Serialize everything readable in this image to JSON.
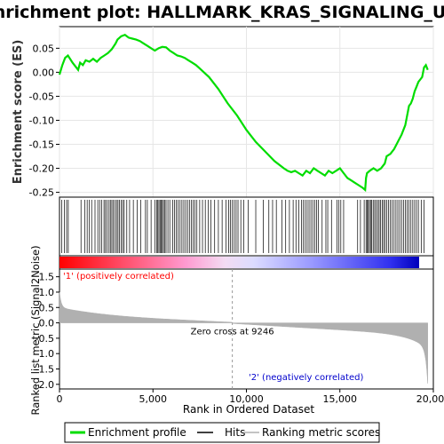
{
  "chart_data": {
    "type": "line",
    "title": "Enrichment plot: HALLMARK_KRAS_SIGNALING_UP",
    "ylabel_top": "Enrichment score (ES)",
    "ylabel_bottom": "Ranked list metric (Signal2Noise)",
    "xlabel": "Rank in Ordered Dataset",
    "x_ticks": [
      0,
      5000,
      10000,
      15000,
      20000
    ],
    "x_tick_labels": [
      "0",
      "5,000",
      "10,000",
      "15,000",
      "20,000"
    ],
    "es_y_ticks": [
      0.05,
      0.0,
      -0.05,
      -0.1,
      -0.15,
      -0.2,
      -0.25
    ],
    "es_y_tick_labels": [
      "0.05",
      "0.00",
      "-0.05",
      "-0.10",
      "-0.15",
      "-0.20",
      "-0.25"
    ],
    "es_ylim": [
      -0.26,
      0.095
    ],
    "metric_y_ticks": [
      1.5,
      1.0,
      0.5,
      0.0,
      -0.5,
      -1.0,
      -1.5,
      -2.0
    ],
    "metric_y_tick_labels": [
      "1.5",
      "1.0",
      "0.5",
      "0.0",
      "-0.5",
      "-1.0",
      "-1.5",
      "-2.0"
    ],
    "metric_ylim": [
      -2.15,
      1.75
    ],
    "xlim": [
      0,
      20000
    ],
    "n_genes": 19700,
    "zero_cross": 9246,
    "zero_cross_label": "Zero cross at 9246",
    "pos_label": "'1' (positively correlated)",
    "neg_label": "'2' (negatively correlated)",
    "colors": {
      "es_line": "#00dd00",
      "hit": "#000000",
      "metric": "#b0b0b0",
      "pos_text": "#ff0000",
      "neg_text": "#0000cc"
    },
    "series": [
      {
        "name": "Enrichment profile",
        "x": [
          0,
          150,
          300,
          450,
          700,
          1000,
          1100,
          1250,
          1400,
          1600,
          1800,
          2000,
          2200,
          2400,
          2600,
          2800,
          3000,
          3100,
          3300,
          3500,
          3700,
          3900,
          4100,
          4300,
          4500,
          4700,
          4900,
          5100,
          5300,
          5500,
          5700,
          5900,
          6100,
          6300,
          6500,
          6700,
          6900,
          7100,
          7300,
          7500,
          8000,
          8500,
          9000,
          9500,
          10000,
          10500,
          11000,
          11500,
          12000,
          12200,
          12400,
          12600,
          12800,
          13000,
          13200,
          13400,
          13600,
          13800,
          14000,
          14200,
          14400,
          14600,
          14800,
          15000,
          15200,
          15400,
          15600,
          15800,
          16000,
          16200,
          16350,
          16400,
          16450,
          16600,
          16800,
          17000,
          17200,
          17400,
          17500,
          17700,
          17900,
          18100,
          18300,
          18500,
          18600,
          18700,
          18800,
          18900,
          19000,
          19100,
          19200,
          19300,
          19400,
          19500,
          19600,
          19700
        ],
        "y": [
          -0.005,
          0.015,
          0.03,
          0.035,
          0.02,
          0.005,
          0.02,
          0.015,
          0.025,
          0.022,
          0.028,
          0.022,
          0.03,
          0.035,
          0.04,
          0.048,
          0.06,
          0.068,
          0.075,
          0.078,
          0.072,
          0.07,
          0.068,
          0.065,
          0.06,
          0.055,
          0.05,
          0.045,
          0.05,
          0.053,
          0.052,
          0.045,
          0.04,
          0.035,
          0.033,
          0.03,
          0.025,
          0.02,
          0.015,
          0.008,
          -0.01,
          -0.035,
          -0.065,
          -0.09,
          -0.12,
          -0.145,
          -0.165,
          -0.185,
          -0.2,
          -0.205,
          -0.208,
          -0.205,
          -0.21,
          -0.215,
          -0.205,
          -0.21,
          -0.2,
          -0.205,
          -0.21,
          -0.215,
          -0.205,
          -0.21,
          -0.205,
          -0.2,
          -0.21,
          -0.22,
          -0.225,
          -0.23,
          -0.235,
          -0.24,
          -0.245,
          -0.22,
          -0.21,
          -0.205,
          -0.2,
          -0.205,
          -0.2,
          -0.19,
          -0.175,
          -0.17,
          -0.16,
          -0.145,
          -0.13,
          -0.11,
          -0.09,
          -0.07,
          -0.065,
          -0.055,
          -0.04,
          -0.03,
          -0.02,
          -0.015,
          -0.01,
          0.01,
          0.015,
          0.005
        ]
      }
    ],
    "hits": [
      120,
      260,
      380,
      470,
      1150,
      1350,
      1480,
      1600,
      1720,
      1900,
      2050,
      2150,
      2250,
      2380,
      2460,
      2550,
      2650,
      2720,
      2800,
      2880,
      2960,
      3050,
      3130,
      3210,
      3300,
      3380,
      3460,
      3600,
      3750,
      3950,
      4150,
      4350,
      4600,
      4700,
      4900,
      5100,
      5200,
      5260,
      5320,
      5380,
      5440,
      5500,
      5560,
      5620,
      5700,
      5800,
      5900,
      6050,
      6150,
      6250,
      6350,
      6450,
      6550,
      6650,
      6750,
      6850,
      6950,
      7050,
      7150,
      7250,
      7350,
      7500,
      7650,
      7800,
      7950,
      8100,
      8300,
      8500,
      8700,
      8900,
      9050,
      9150,
      9250,
      9350,
      9450,
      9550,
      9700,
      9850,
      10100,
      10500,
      10900,
      11200,
      11400,
      11600,
      11900,
      12100,
      12300,
      12500,
      12650,
      12800,
      12950,
      13050,
      13150,
      13250,
      13350,
      13450,
      13550,
      13650,
      13750,
      13850,
      14050,
      14250,
      14350,
      14550,
      14850,
      14950,
      15050,
      15200,
      15950,
      16100,
      16300,
      16400,
      16460,
      16520,
      16580,
      16640,
      16700,
      16780,
      16860,
      16940,
      17020,
      17100,
      17180,
      17260,
      17340,
      17420,
      17500,
      17600,
      17700,
      17800,
      17900,
      18000,
      18100,
      18200,
      18300,
      18400,
      18500,
      18600,
      18700,
      18800,
      18900,
      19000,
      19100,
      19200,
      19350,
      19500
    ]
  },
  "legend": {
    "items": [
      {
        "label": "Enrichment profile",
        "color": "#00dd00"
      },
      {
        "label": "Hits",
        "color": "#000000"
      },
      {
        "label": "Ranking metric scores",
        "color": "#b0b0b0"
      }
    ]
  }
}
